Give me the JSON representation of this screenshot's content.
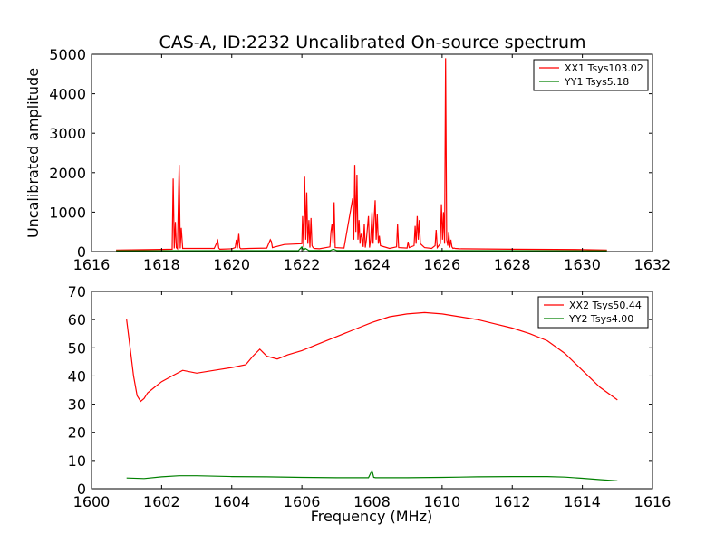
{
  "title": "CAS-A, ID:2232 Uncalibrated On-source spectrum",
  "chart_data": [
    {
      "type": "line",
      "ylabel": "Uncalibrated amplitude",
      "xlabel": "",
      "xlim": [
        1616,
        1632
      ],
      "ylim": [
        0,
        5000
      ],
      "xticks": [
        1616,
        1618,
        1620,
        1622,
        1624,
        1626,
        1628,
        1630,
        1632
      ],
      "yticks": [
        0,
        1000,
        2000,
        3000,
        4000,
        5000
      ],
      "legend_position": "top-right",
      "series": [
        {
          "name": "XX1 Tsys103.02",
          "color": "#ff0000",
          "x": [
            1616.7,
            1618.0,
            1618.3,
            1618.33,
            1618.36,
            1618.39,
            1618.42,
            1618.45,
            1618.5,
            1618.53,
            1618.56,
            1618.6,
            1619.0,
            1619.5,
            1619.6,
            1619.63,
            1619.66,
            1620.0,
            1620.1,
            1620.13,
            1620.16,
            1620.2,
            1620.23,
            1620.26,
            1620.5,
            1621.0,
            1621.1,
            1621.13,
            1621.16,
            1621.5,
            1622.0,
            1622.02,
            1622.05,
            1622.08,
            1622.11,
            1622.14,
            1622.17,
            1622.2,
            1622.23,
            1622.26,
            1622.29,
            1622.32,
            1622.35,
            1622.5,
            1622.8,
            1622.83,
            1622.86,
            1622.89,
            1622.92,
            1622.95,
            1623.2,
            1623.45,
            1623.48,
            1623.51,
            1623.54,
            1623.57,
            1623.6,
            1623.63,
            1623.66,
            1623.69,
            1623.72,
            1623.75,
            1623.78,
            1623.81,
            1623.84,
            1623.9,
            1623.93,
            1623.96,
            1624.0,
            1624.03,
            1624.06,
            1624.09,
            1624.12,
            1624.15,
            1624.18,
            1624.21,
            1624.24,
            1624.5,
            1624.7,
            1624.73,
            1624.76,
            1625.0,
            1625.03,
            1625.06,
            1625.2,
            1625.23,
            1625.26,
            1625.29,
            1625.32,
            1625.35,
            1625.38,
            1625.5,
            1625.7,
            1625.8,
            1625.83,
            1625.86,
            1625.95,
            1625.98,
            1626.01,
            1626.04,
            1626.07,
            1626.1,
            1626.13,
            1626.16,
            1626.19,
            1626.22,
            1626.25,
            1626.28,
            1626.31,
            1626.34,
            1626.37,
            1626.5,
            1628.0,
            1630.0,
            1630.7
          ],
          "y": [
            40,
            55,
            60,
            1850,
            80,
            750,
            100,
            70,
            2200,
            80,
            600,
            80,
            80,
            80,
            280,
            90,
            60,
            70,
            100,
            300,
            80,
            450,
            100,
            70,
            80,
            90,
            300,
            250,
            100,
            180,
            200,
            900,
            120,
            1900,
            300,
            1500,
            200,
            800,
            100,
            850,
            150,
            100,
            80,
            70,
            120,
            500,
            700,
            200,
            1250,
            100,
            90,
            1350,
            300,
            2200,
            500,
            1950,
            300,
            800,
            200,
            450,
            350,
            120,
            700,
            100,
            300,
            900,
            100,
            300,
            1000,
            200,
            800,
            1300,
            300,
            950,
            200,
            400,
            150,
            80,
            120,
            700,
            100,
            90,
            250,
            100,
            150,
            650,
            200,
            900,
            300,
            800,
            200,
            100,
            80,
            150,
            550,
            100,
            200,
            1200,
            300,
            1000,
            200,
            4900,
            300,
            150,
            500,
            100,
            300,
            120,
            80,
            90,
            80,
            70,
            60,
            50,
            40
          ]
        },
        {
          "name": "YY1 Tsys5.18",
          "color": "#008000",
          "x": [
            1616.7,
            1621.9,
            1622.0,
            1622.05,
            1622.1,
            1622.2,
            1622.4,
            1622.8,
            1622.9,
            1623.0,
            1630.7
          ],
          "y": [
            20,
            25,
            120,
            30,
            80,
            25,
            25,
            25,
            60,
            25,
            20
          ]
        }
      ]
    },
    {
      "type": "line",
      "ylabel": "",
      "xlabel": "Frequency (MHz)",
      "xlim": [
        1600,
        1616
      ],
      "ylim": [
        0,
        70
      ],
      "xticks": [
        1600,
        1602,
        1604,
        1606,
        1608,
        1610,
        1612,
        1614,
        1616
      ],
      "yticks": [
        0,
        10,
        20,
        30,
        40,
        50,
        60,
        70
      ],
      "legend_position": "top-right",
      "series": [
        {
          "name": "XX2 Tsys50.44",
          "color": "#ff0000",
          "x": [
            1601.0,
            1601.1,
            1601.2,
            1601.3,
            1601.4,
            1601.5,
            1601.6,
            1601.8,
            1602.0,
            1602.3,
            1602.6,
            1603.0,
            1603.5,
            1604.0,
            1604.4,
            1604.6,
            1604.8,
            1605.0,
            1605.3,
            1605.6,
            1606.0,
            1606.5,
            1607.0,
            1607.5,
            1608.0,
            1608.5,
            1609.0,
            1609.5,
            1610.0,
            1610.5,
            1611.0,
            1611.5,
            1612.0,
            1612.5,
            1613.0,
            1613.5,
            1614.0,
            1614.5,
            1615.0
          ],
          "y": [
            60,
            50,
            40,
            33,
            31,
            32,
            34,
            36,
            38,
            40,
            42,
            41,
            42,
            43,
            44,
            47,
            49.5,
            47,
            46,
            47.5,
            49,
            51.5,
            54,
            56.5,
            59,
            61,
            62,
            62.5,
            62,
            61,
            60,
            58.5,
            57,
            55,
            52.5,
            48,
            42,
            36,
            31.5
          ]
        },
        {
          "name": "YY2 Tsys4.00",
          "color": "#008000",
          "x": [
            1601.0,
            1601.5,
            1602.0,
            1602.5,
            1603.0,
            1604.0,
            1605.0,
            1606.0,
            1607.0,
            1607.9,
            1608.0,
            1608.05,
            1608.1,
            1609.0,
            1610.0,
            1611.0,
            1612.0,
            1613.0,
            1613.5,
            1614.0,
            1614.5,
            1615.0
          ],
          "y": [
            3.8,
            3.6,
            4.2,
            4.6,
            4.6,
            4.3,
            4.2,
            4.0,
            3.9,
            3.9,
            6.5,
            4.0,
            3.9,
            3.9,
            4.0,
            4.2,
            4.3,
            4.3,
            4.1,
            3.7,
            3.2,
            2.8
          ]
        }
      ]
    }
  ]
}
